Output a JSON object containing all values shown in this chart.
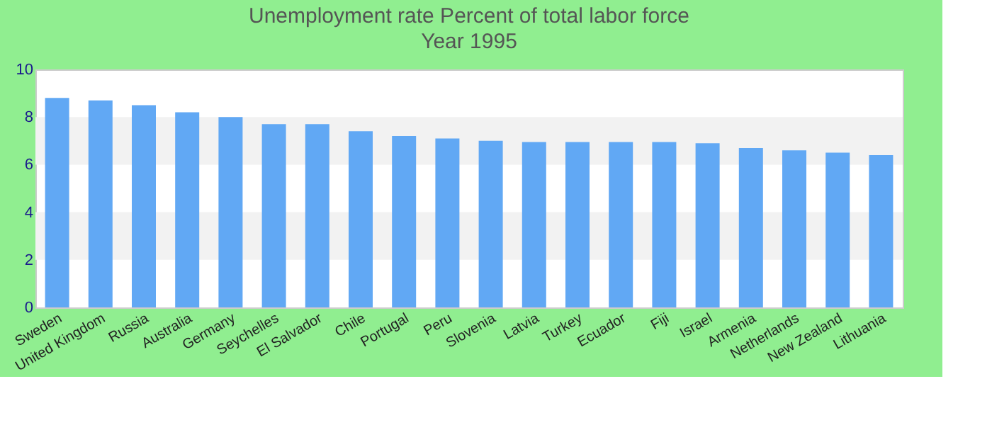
{
  "chart_data": {
    "type": "bar",
    "title": "Unemployment rate  Percent of total labor force",
    "subtitle": "Year 1995",
    "categories": [
      "Sweden",
      "United Kingdom",
      "Russia",
      "Australia",
      "Germany",
      "Seychelles",
      "El Salvador",
      "Chile",
      "Portugal",
      "Peru",
      "Slovenia",
      "Latvia",
      "Turkey",
      "Ecuador",
      "Fiji",
      "Israel",
      "Armenia",
      "Netherlands",
      "New Zealand",
      "Lithuania"
    ],
    "values": [
      8.8,
      8.7,
      8.5,
      8.2,
      8.0,
      7.7,
      7.7,
      7.4,
      7.2,
      7.1,
      7.0,
      6.95,
      6.95,
      6.95,
      6.95,
      6.9,
      6.7,
      6.6,
      6.5,
      6.4
    ],
    "color": "#61a8f4",
    "ylim": [
      0,
      10
    ],
    "yticks": [
      0,
      2,
      4,
      6,
      8,
      10
    ],
    "grid": false,
    "bands": [
      {
        "axis": "y",
        "from": 2,
        "to": 4,
        "color": "#f2f2f2"
      },
      {
        "axis": "y",
        "from": 6,
        "to": 8,
        "color": "#f2f2f2"
      }
    ]
  }
}
